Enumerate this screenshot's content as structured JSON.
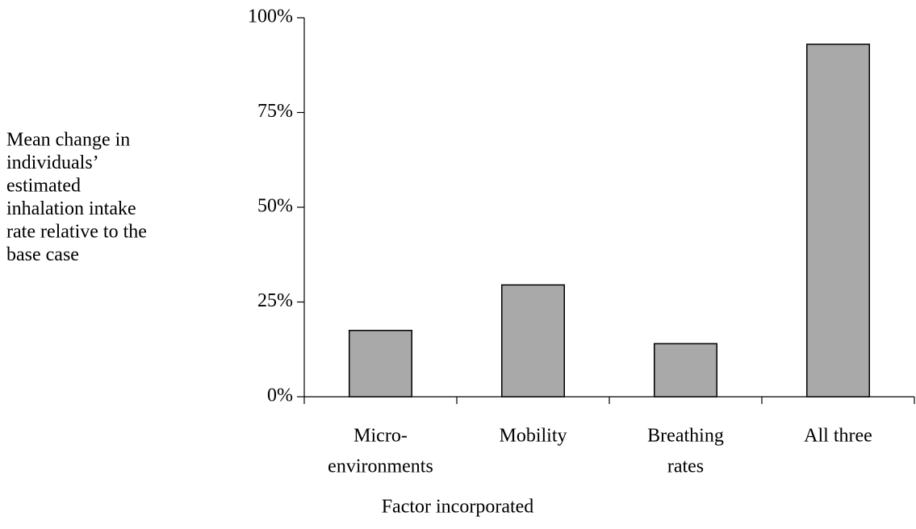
{
  "chart_data": {
    "type": "bar",
    "y_label": [
      "Mean change in",
      "individuals’",
      "estimated",
      "inhalation intake",
      "rate relative to the",
      "base case"
    ],
    "x_label": "Factor incorporated",
    "categories": [
      [
        "Micro-",
        "environments"
      ],
      [
        "Mobility"
      ],
      [
        "Breathing",
        "rates"
      ],
      [
        "All three"
      ]
    ],
    "values": [
      17.5,
      29.5,
      14,
      93
    ],
    "color": "#a9a9a9",
    "ylim": [
      0,
      100
    ],
    "yticks": [
      {
        "value": 0,
        "label": "0%"
      },
      {
        "value": 25,
        "label": "25%"
      },
      {
        "value": 50,
        "label": "50%"
      },
      {
        "value": 75,
        "label": "75%"
      },
      {
        "value": 100,
        "label": "100%"
      }
    ],
    "grid": false
  }
}
